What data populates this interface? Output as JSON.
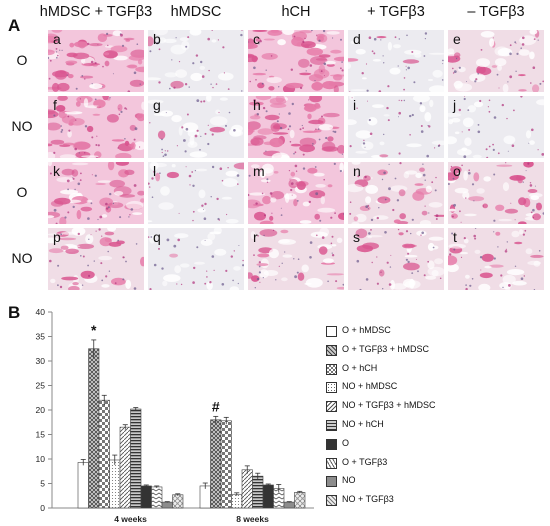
{
  "figure": {
    "panel_a_label": "A",
    "panel_b_label": "B",
    "columns": [
      "hMDSC + TGFβ3",
      "hMDSC",
      "hCH",
      "+ TGFβ3",
      "– TGFβ3"
    ],
    "rows": [
      "O",
      "NO",
      "O",
      "NO"
    ],
    "tiles": [
      [
        "a",
        "b",
        "c",
        "d",
        "e"
      ],
      [
        "f",
        "g",
        "h",
        "i",
        "j"
      ],
      [
        "k",
        "l",
        "m",
        "n",
        "o"
      ],
      [
        "p",
        "q",
        "r",
        "s",
        "t"
      ]
    ],
    "tile_stain": [
      [
        0.85,
        0.05,
        0.9,
        0.1,
        0.35
      ],
      [
        0.8,
        0.12,
        0.9,
        0.08,
        0.05
      ],
      [
        0.6,
        0.05,
        0.55,
        0.45,
        0.5
      ],
      [
        0.45,
        0.04,
        0.4,
        0.3,
        0.3
      ]
    ]
  },
  "chart_data": {
    "type": "bar",
    "categories": [
      "4 weeks",
      "8 weeks"
    ],
    "ylim": [
      0,
      40
    ],
    "yticks": [
      0,
      5,
      10,
      15,
      20,
      25,
      30,
      35,
      40
    ],
    "series": [
      {
        "name": "O + hMDSC",
        "values": [
          9.3,
          4.5
        ],
        "errors": [
          0.6,
          0.6
        ],
        "pattern": "plain"
      },
      {
        "name": "O + TGFβ3 + hMDSC",
        "values": [
          32.5,
          18
        ],
        "errors": [
          1.8,
          0.7
        ],
        "pattern": "crosshatch"
      },
      {
        "name": "O + hCH",
        "values": [
          22,
          17.8
        ],
        "errors": [
          1.0,
          0.7
        ],
        "pattern": "checker"
      },
      {
        "name": "NO + hMDSC",
        "values": [
          9.8,
          2.8
        ],
        "errors": [
          1.0,
          0.3
        ],
        "pattern": "dots"
      },
      {
        "name": "NO + TGFβ3 + hMDSC",
        "values": [
          16.5,
          7.8
        ],
        "errors": [
          0.5,
          0.8
        ],
        "pattern": "diag"
      },
      {
        "name": "NO + hCH",
        "values": [
          20.2,
          6.5
        ],
        "errors": [
          0.3,
          0.6
        ],
        "pattern": "hstripes"
      },
      {
        "name": "O",
        "values": [
          4.5,
          4.7
        ],
        "errors": [
          0.2,
          0.2
        ],
        "pattern": "dark"
      },
      {
        "name": "O + TGFβ3",
        "values": [
          4.3,
          4.0
        ],
        "errors": [
          0.2,
          0.8
        ],
        "pattern": "zigzag"
      },
      {
        "name": "NO",
        "values": [
          1.2,
          1.2
        ],
        "errors": [
          0.1,
          0.1
        ],
        "pattern": "grey"
      },
      {
        "name": "NO + TGFβ3",
        "values": [
          2.7,
          3.2
        ],
        "errors": [
          0.2,
          0.2
        ],
        "pattern": "lattice"
      }
    ],
    "annotations": [
      {
        "text": "*",
        "category": 0,
        "series": 1
      },
      {
        "text": "#",
        "category": 1,
        "series": 1
      }
    ]
  }
}
